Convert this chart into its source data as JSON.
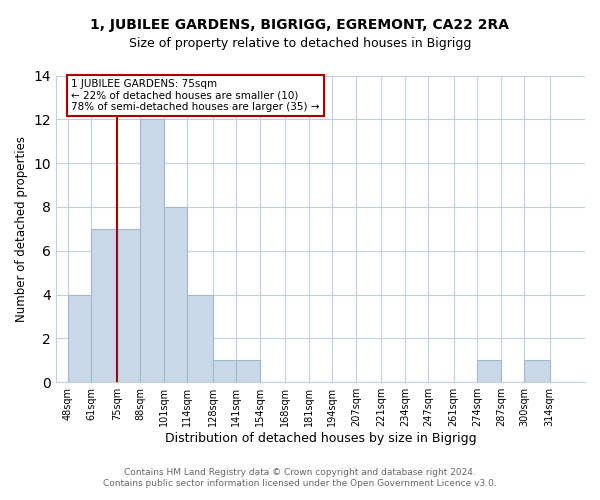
{
  "title": "1, JUBILEE GARDENS, BIGRIGG, EGREMONT, CA22 2RA",
  "subtitle": "Size of property relative to detached houses in Bigrigg",
  "xlabel": "Distribution of detached houses by size in Bigrigg",
  "ylabel": "Number of detached properties",
  "bar_color": "#c8d8e8",
  "bar_edgecolor": "#a0b8cc",
  "grid_color": "#c0d0e0",
  "annotation_line_color": "#aa0000",
  "annotation_box_edgecolor": "#aa0000",
  "bin_labels": [
    "48sqm",
    "61sqm",
    "75sqm",
    "88sqm",
    "101sqm",
    "114sqm",
    "128sqm",
    "141sqm",
    "154sqm",
    "168sqm",
    "181sqm",
    "194sqm",
    "207sqm",
    "221sqm",
    "234sqm",
    "247sqm",
    "261sqm",
    "274sqm",
    "287sqm",
    "300sqm",
    "314sqm"
  ],
  "bin_edges": [
    48,
    61,
    75,
    88,
    101,
    114,
    128,
    141,
    154,
    168,
    181,
    194,
    207,
    221,
    234,
    247,
    261,
    274,
    287,
    300,
    314,
    327
  ],
  "counts": [
    4,
    7,
    7,
    12,
    8,
    4,
    1,
    1,
    0,
    0,
    0,
    0,
    0,
    0,
    0,
    0,
    0,
    1,
    0,
    1,
    0
  ],
  "property_size": 75,
  "annotation_title": "1 JUBILEE GARDENS: 75sqm",
  "annotation_line1": "← 22% of detached houses are smaller (10)",
  "annotation_line2": "78% of semi-detached houses are larger (35) →",
  "ylim": [
    0,
    14
  ],
  "yticks": [
    0,
    2,
    4,
    6,
    8,
    10,
    12,
    14
  ],
  "footer_line1": "Contains HM Land Registry data © Crown copyright and database right 2024.",
  "footer_line2": "Contains public sector information licensed under the Open Government Licence v3.0."
}
